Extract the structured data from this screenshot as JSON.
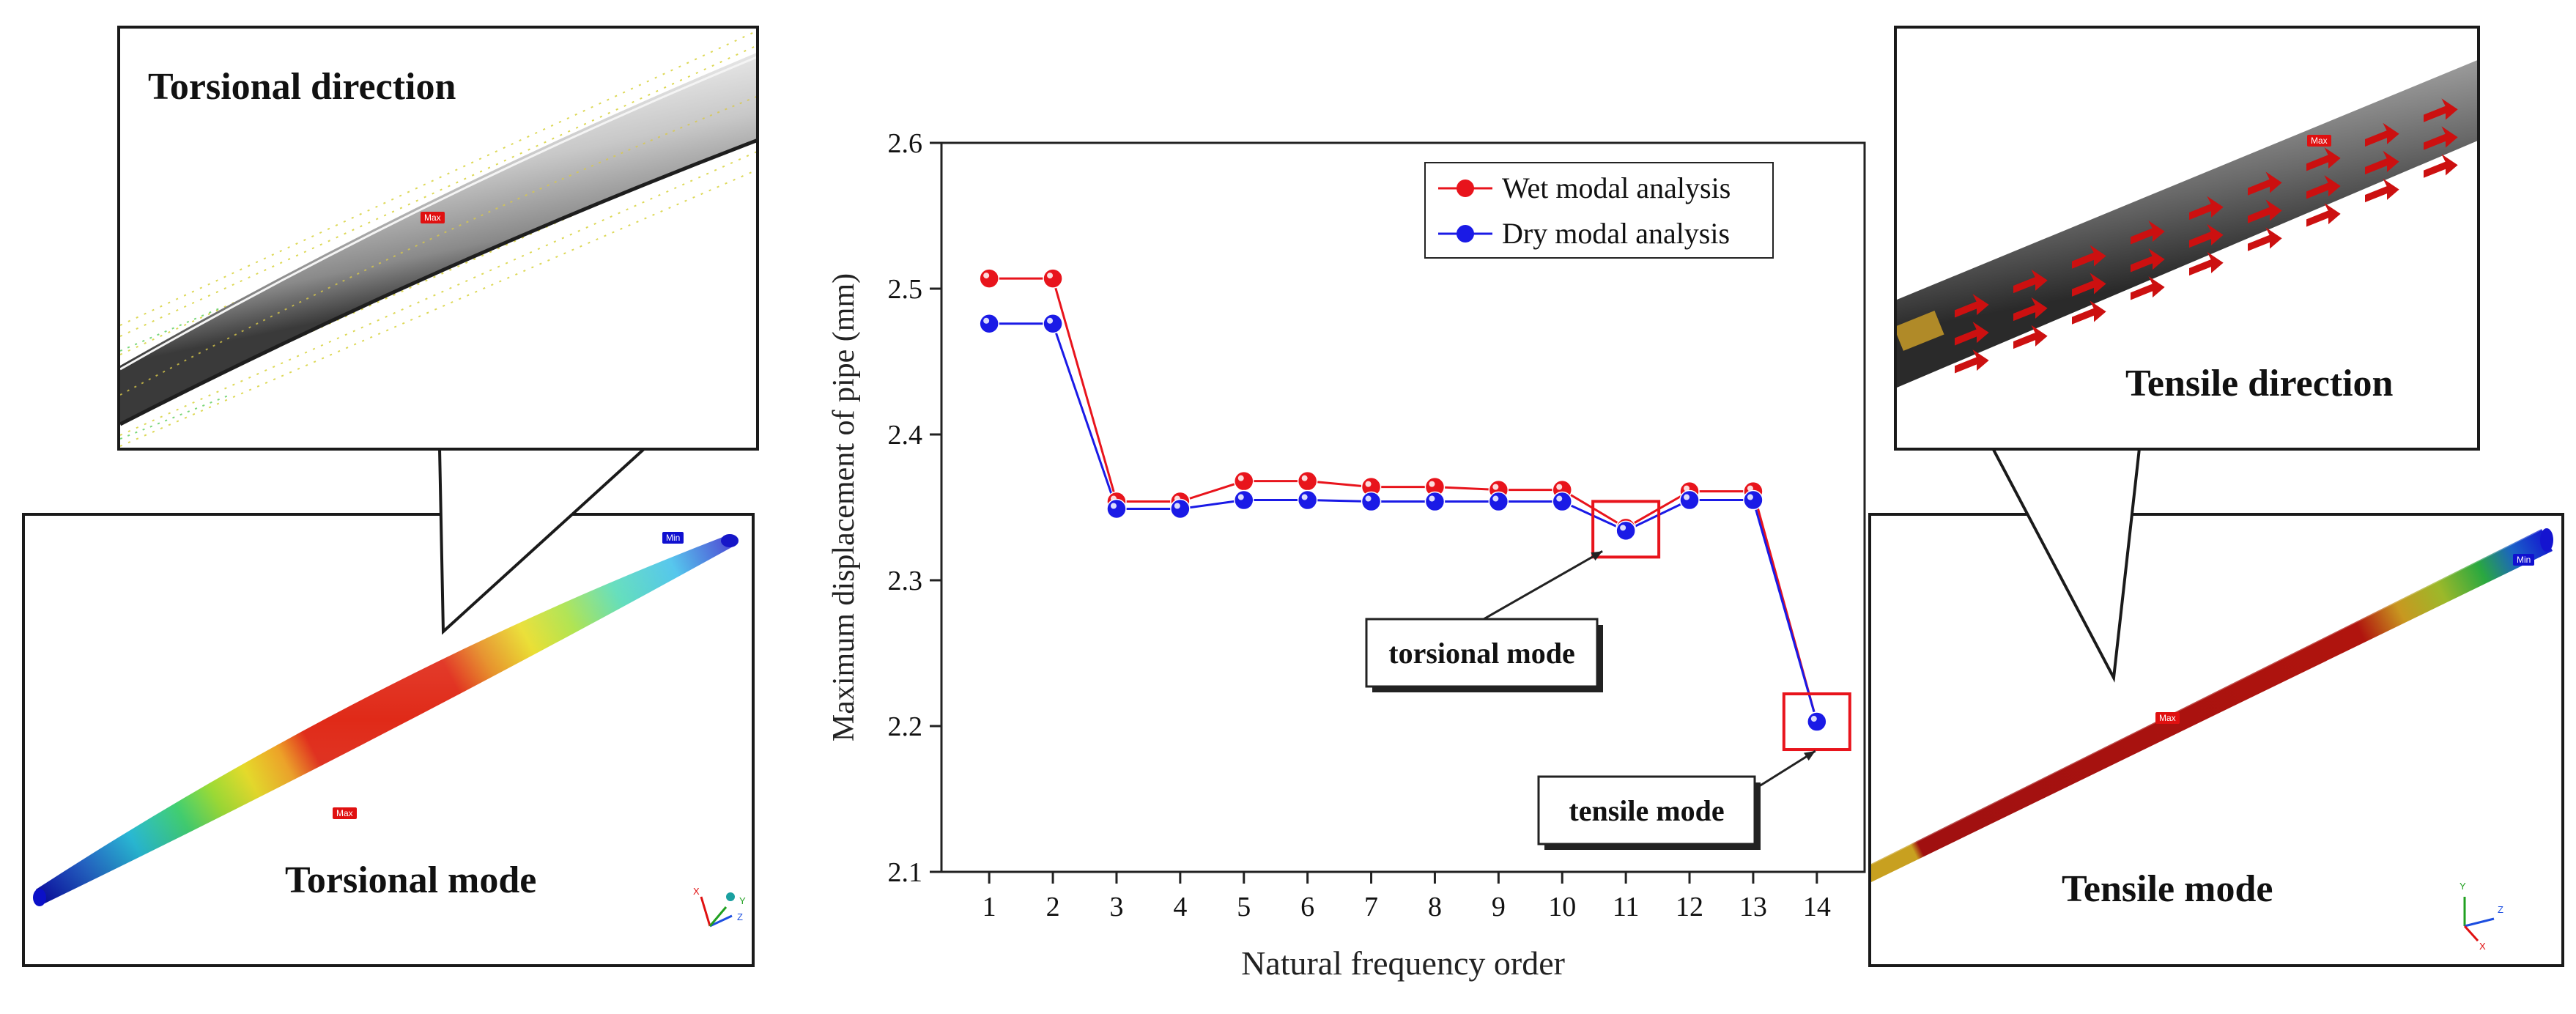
{
  "left": {
    "callout_title": "Torsional direction",
    "mode_title": "Torsional mode",
    "max_tag": "Max",
    "min_tag": "Min",
    "axes": [
      "X",
      "Y",
      "Z"
    ]
  },
  "right": {
    "callout_title": "Tensile direction",
    "mode_title": "Tensile mode",
    "max_tag": "Max",
    "min_tag": "Min",
    "axes": [
      "X",
      "Y",
      "Z"
    ]
  },
  "colors": {
    "wet": "#e8141c",
    "dry": "#1a1ae6",
    "highlight": "#e8141c",
    "contour_max": "#e01010",
    "contour_min": "#1010d0"
  },
  "chart_data": {
    "type": "line",
    "title": "",
    "xlabel": "Natural frequency order",
    "ylabel": "Maximum displacement of pipe  (mm)",
    "x": [
      1,
      2,
      3,
      4,
      5,
      6,
      7,
      8,
      9,
      10,
      11,
      12,
      13,
      14
    ],
    "ylim": [
      2.1,
      2.6
    ],
    "yticks": [
      "2.1",
      "2.2",
      "2.3",
      "2.4",
      "2.5",
      "2.6"
    ],
    "legend_position": "top-right",
    "series": [
      {
        "name": "Wet modal analysis",
        "values": [
          2.507,
          2.507,
          2.354,
          2.354,
          2.368,
          2.368,
          2.364,
          2.364,
          2.362,
          2.362,
          2.336,
          2.361,
          2.361,
          2.203
        ]
      },
      {
        "name": "Dry modal analysis",
        "values": [
          2.476,
          2.476,
          2.349,
          2.349,
          2.355,
          2.355,
          2.354,
          2.354,
          2.354,
          2.354,
          2.334,
          2.355,
          2.355,
          2.203
        ]
      }
    ],
    "annotations": [
      {
        "label": "torsional mode",
        "x": 11,
        "y": 2.335
      },
      {
        "label": "tensile mode",
        "x": 14,
        "y": 2.203
      }
    ]
  }
}
